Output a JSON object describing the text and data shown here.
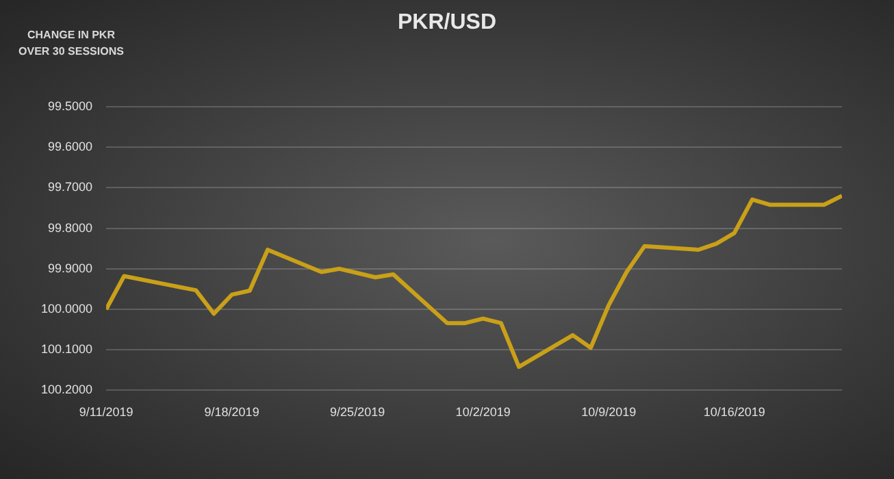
{
  "chart_data": {
    "type": "line",
    "title": "PKR/USD",
    "ylabel": "CHANGE IN PKR OVER 30 SESSIONS",
    "x": [
      "2019-09-11",
      "2019-09-12",
      "2019-09-16",
      "2019-09-17",
      "2019-09-18",
      "2019-09-19",
      "2019-09-20",
      "2019-09-23",
      "2019-09-24",
      "2019-09-26",
      "2019-09-27",
      "2019-09-30",
      "2019-10-01",
      "2019-10-02",
      "2019-10-03",
      "2019-10-04",
      "2019-10-07",
      "2019-10-08",
      "2019-10-09",
      "2019-10-10",
      "2019-10-11",
      "2019-10-14",
      "2019-10-15",
      "2019-10-16",
      "2019-10-17",
      "2019-10-18",
      "2019-10-21",
      "2019-10-22"
    ],
    "series": [
      {
        "color": "#c9a018",
        "values": [
          100.0,
          99.918,
          99.953,
          100.011,
          99.964,
          99.954,
          99.853,
          99.908,
          99.9,
          99.921,
          99.914,
          100.034,
          100.034,
          100.023,
          100.034,
          100.142,
          100.064,
          100.095,
          99.99,
          99.908,
          99.844,
          99.853,
          99.838,
          99.812,
          99.729,
          99.742,
          99.742,
          99.72
        ]
      }
    ],
    "xlim": [
      "2019-09-11",
      "2019-10-22"
    ],
    "xticks": [
      {
        "value": "2019-09-11",
        "label": "9/11/2019"
      },
      {
        "value": "2019-09-18",
        "label": "9/18/2019"
      },
      {
        "value": "2019-09-25",
        "label": "9/25/2019"
      },
      {
        "value": "2019-10-02",
        "label": "10/2/2019"
      },
      {
        "value": "2019-10-09",
        "label": "10/9/2019"
      },
      {
        "value": "2019-10-16",
        "label": "10/16/2019"
      }
    ],
    "ylim": [
      100.2,
      99.5
    ],
    "yticks": [
      {
        "value": 99.5,
        "label": "99.5000"
      },
      {
        "value": 99.6,
        "label": "99.6000"
      },
      {
        "value": 99.7,
        "label": "99.7000"
      },
      {
        "value": 99.8,
        "label": "99.8000"
      },
      {
        "value": 99.9,
        "label": "99.9000"
      },
      {
        "value": 100.0,
        "label": "100.0000"
      },
      {
        "value": 100.1,
        "label": "100.1000"
      },
      {
        "value": 100.2,
        "label": "100.2000"
      }
    ],
    "grid": "y",
    "legend": false,
    "marker": "none",
    "line_style": "solid"
  }
}
